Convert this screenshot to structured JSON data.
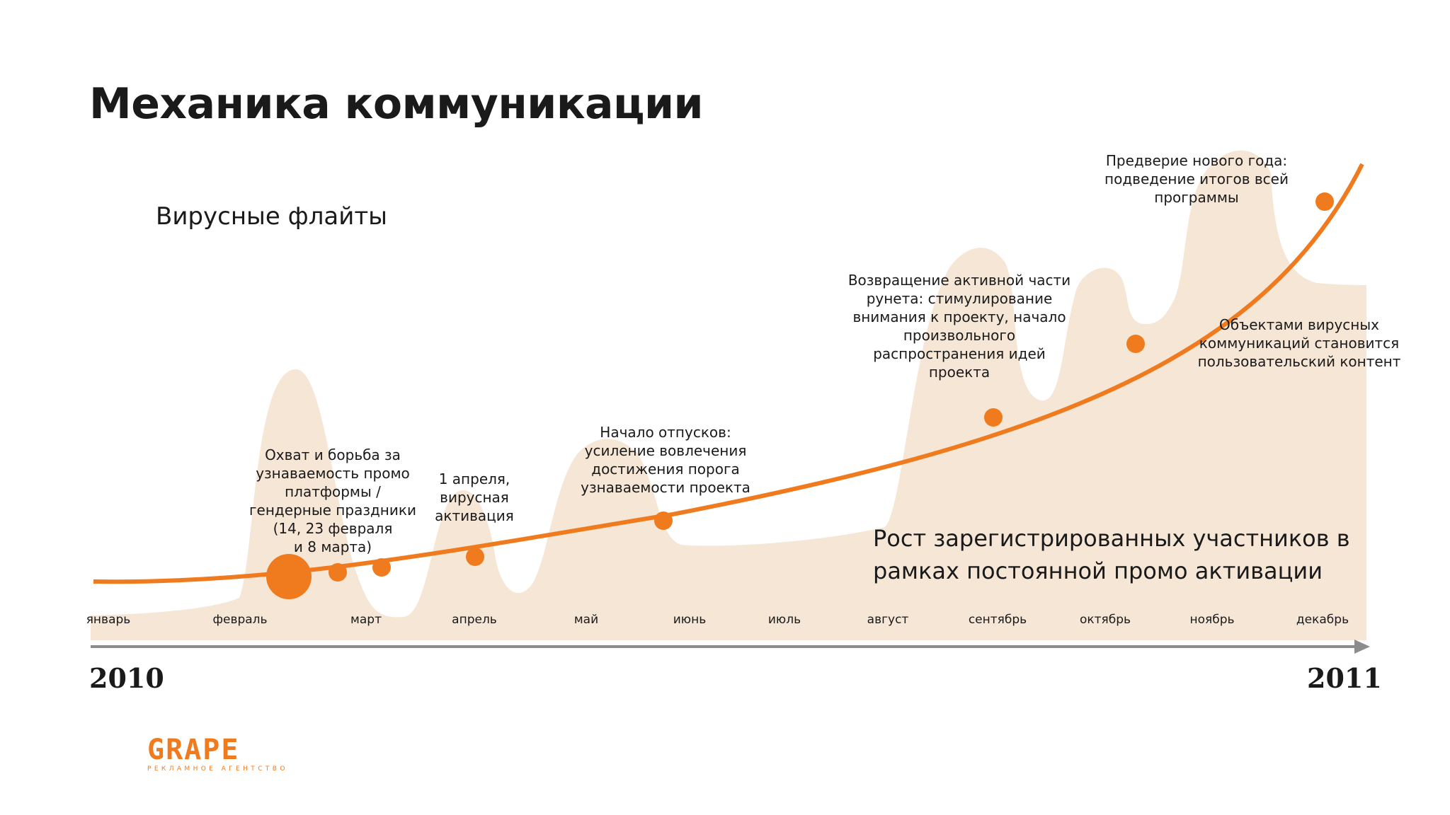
{
  "title": "Механика коммуникации",
  "subtitle": "Вирусные флайты",
  "growth_label": "Рост зарегистрированных участников в\nрамках постоянной промо активации",
  "months": [
    "январь",
    "февраль",
    "март",
    "апрель",
    "май",
    "июнь",
    "июль",
    "август",
    "сентябрь",
    "октябрь",
    "ноябрь",
    "декабрь"
  ],
  "years": {
    "start": "2010",
    "end": "2011"
  },
  "annotations": [
    {
      "text": "Охват и борьба за\nузнаваемость промо\nплатформы /\nгендерные праздники\n(14, 23 февраля\nи 8 марта)"
    },
    {
      "text": "1 апреля,\nвирусная\nактивация"
    },
    {
      "text": "Начало отпусков:\nусиление вовлечения\nдостижения порога\nузнаваемости проекта"
    },
    {
      "text": "Возвращение активной части\nрунета: стимулирование\nвнимания к проекту, начало\nпроизвольного\nраспространения идей\nпроекта"
    },
    {
      "text": "Предверие нового года:\nподведение итогов всей\nпрограммы"
    },
    {
      "text": "Объектами вирусных\nкоммуникаций становится\nпользовательский контент"
    }
  ],
  "logo": {
    "name": "GRAPE",
    "tagline": "РЕКЛАМНОЕ АГЕНТСТВО"
  },
  "colors": {
    "accent": "#f07a1e",
    "area": "#f5e6d6",
    "axis": "#8c8c8c",
    "text": "#1a1a1a"
  }
}
